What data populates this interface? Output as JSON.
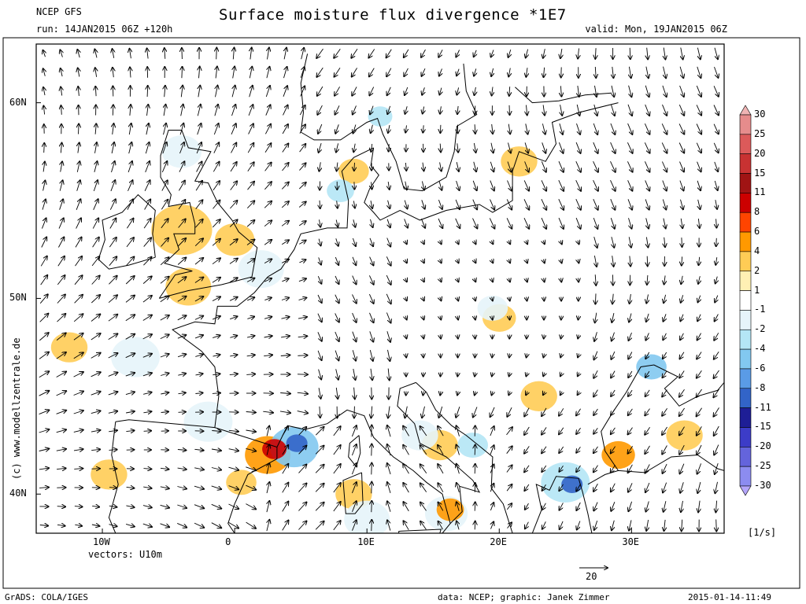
{
  "header": {
    "model": "NCEP GFS",
    "run": "run: 14JAN2015 06Z +120h",
    "title": "Surface moisture flux divergence *1E7",
    "valid": "valid: Mon, 19JAN2015 06Z"
  },
  "map": {
    "lon_range": [
      -15,
      37
    ],
    "lat_range": [
      38,
      63
    ],
    "lon_ticks": [
      {
        "lon": -10,
        "label": "10W"
      },
      {
        "lon": 0,
        "label": "0"
      },
      {
        "lon": 10,
        "label": "10E"
      },
      {
        "lon": 20,
        "label": "20E"
      },
      {
        "lon": 30,
        "label": "30E"
      }
    ],
    "lat_ticks": [
      {
        "lat": 60,
        "label": "60N"
      },
      {
        "lat": 50,
        "label": "50N"
      },
      {
        "lat": 40,
        "label": "40N"
      }
    ],
    "vectors_label": "vectors: U10m",
    "watermark": "(c) www.modellzentrale.de",
    "divergence_blobs": [
      {
        "lon": 3.0,
        "lat": 42.3,
        "r": 0.8,
        "level": 8
      },
      {
        "lon": 2.5,
        "lat": 42.0,
        "r": 1.5,
        "level": 4
      },
      {
        "lon": 0.5,
        "lat": 40.6,
        "r": 1.0,
        "level": 2
      },
      {
        "lon": 9.0,
        "lat": 40.0,
        "r": 1.2,
        "level": 2
      },
      {
        "lon": 16.3,
        "lat": 39.2,
        "r": 0.9,
        "level": 4
      },
      {
        "lon": 15.5,
        "lat": 42.5,
        "r": 1.2,
        "level": 2
      },
      {
        "lon": -4.0,
        "lat": 53.5,
        "r": 2.0,
        "level": 2
      },
      {
        "lon": -3.5,
        "lat": 50.6,
        "r": 1.5,
        "level": 2
      },
      {
        "lon": 0.0,
        "lat": 53.0,
        "r": 1.3,
        "level": 2
      },
      {
        "lon": 9.0,
        "lat": 56.5,
        "r": 1.0,
        "level": 2
      },
      {
        "lon": 21.5,
        "lat": 57.0,
        "r": 1.2,
        "level": 2
      },
      {
        "lon": -12.5,
        "lat": 47.5,
        "r": 1.2,
        "level": 2
      },
      {
        "lon": 23.0,
        "lat": 45.0,
        "r": 1.2,
        "level": 2
      },
      {
        "lon": 29.0,
        "lat": 42.0,
        "r": 1.1,
        "level": 4
      },
      {
        "lon": 34.0,
        "lat": 43.0,
        "r": 1.2,
        "level": 2
      },
      {
        "lon": -9.5,
        "lat": 41.0,
        "r": 1.2,
        "level": 2
      },
      {
        "lon": 20.0,
        "lat": 49.0,
        "r": 1.1,
        "level": 2
      }
    ],
    "convergence_blobs": [
      {
        "lon": 4.7,
        "lat": 42.6,
        "r": 0.7,
        "level": -11
      },
      {
        "lon": 4.5,
        "lat": 42.4,
        "r": 1.6,
        "level": -6
      },
      {
        "lon": 25.5,
        "lat": 40.5,
        "r": 0.7,
        "level": -11
      },
      {
        "lon": 25.0,
        "lat": 40.6,
        "r": 1.6,
        "level": -4
      },
      {
        "lon": 11.0,
        "lat": 59.3,
        "r": 0.8,
        "level": -4
      },
      {
        "lon": 8.0,
        "lat": 55.5,
        "r": 0.9,
        "level": -4
      },
      {
        "lon": 31.5,
        "lat": 46.5,
        "r": 1.0,
        "level": -6
      },
      {
        "lon": 18.0,
        "lat": 42.5,
        "r": 1.0,
        "level": -4
      },
      {
        "lon": 16.0,
        "lat": 39.0,
        "r": 1.4,
        "level": -2
      },
      {
        "lon": 2.0,
        "lat": 51.5,
        "r": 1.5,
        "level": -2
      },
      {
        "lon": -2.0,
        "lat": 43.7,
        "r": 1.6,
        "level": -2
      },
      {
        "lon": -4.0,
        "lat": 57.5,
        "r": 1.3,
        "level": -2
      },
      {
        "lon": 10.0,
        "lat": 38.7,
        "r": 1.5,
        "level": -2
      },
      {
        "lon": 14.0,
        "lat": 43.0,
        "r": 1.2,
        "level": -2
      },
      {
        "lon": -7.5,
        "lat": 47.0,
        "r": 1.6,
        "level": -2
      },
      {
        "lon": 19.5,
        "lat": 49.5,
        "r": 1.0,
        "level": -2
      }
    ]
  },
  "colorbar": {
    "levels": [
      "30",
      "25",
      "20",
      "15",
      "11",
      "8",
      "6",
      "4",
      "2",
      "1",
      "-1",
      "-2",
      "-4",
      "-6",
      "-8",
      "-11",
      "-15",
      "-20",
      "-25",
      "-30"
    ],
    "colors": [
      "#f0b4b4",
      "#e68c8c",
      "#dc5a5a",
      "#c83232",
      "#a01414",
      "#cc0000",
      "#ff4400",
      "#ff9900",
      "#ffcc55",
      "#fff0b4",
      "#ffffff",
      "#e6f4fa",
      "#b4e6f5",
      "#82c8f0",
      "#5a9be6",
      "#3264c8",
      "#1e1e96",
      "#3c3cc8",
      "#6464dc",
      "#8c8cf0",
      "#b4a5fa"
    ],
    "unit": "[1/s]"
  },
  "scale_arrow": {
    "label": "20"
  },
  "footer": {
    "grads": "GrADS: COLA/IGES",
    "credit": "data: NCEP; graphic: Janek Zimmer",
    "timestamp": "2015-01-14-11:49"
  }
}
